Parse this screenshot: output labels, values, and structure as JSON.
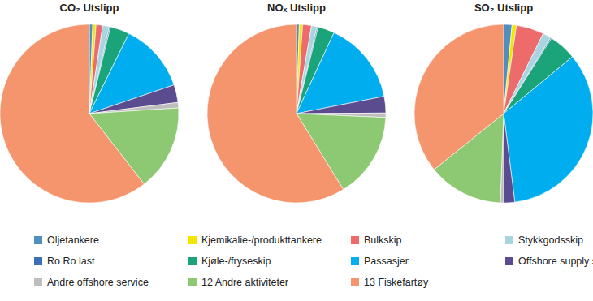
{
  "chart_data": [
    {
      "type": "pie",
      "title": "CO₂ Utslipp",
      "categories": [
        "Oljetankere",
        "Kjemikalie-/produkttankere",
        "Bulkskip",
        "Stykkgodsskip",
        "Ro Ro last",
        "Kjøle-/fryseskip",
        "Passasjer",
        "Offshore supply skip",
        "Andre offshore service",
        "12 Andre aktiviteter",
        "13 Fiskefartøy"
      ],
      "values": [
        0.6,
        0.6,
        1.2,
        1.2,
        0.2,
        3.5,
        12.5,
        3.2,
        1.0,
        15.5,
        60.5
      ],
      "colors": [
        "#4f8fc0",
        "#f2e600",
        "#ee6b6b",
        "#a9d4e2",
        "#3b6fb6",
        "#1ba37a",
        "#00aeef",
        "#5b4b8f",
        "#bebebe",
        "#8dc872",
        "#f4956e"
      ],
      "legend": "bottom"
    },
    {
      "type": "pie",
      "title": "NOₓ Utslipp",
      "categories": [
        "Oljetankere",
        "Kjemikalie-/produkttankere",
        "Bulkskip",
        "Stykkgodsskip",
        "Ro Ro last",
        "Kjøle-/fryseskip",
        "Passasjer",
        "Offshore supply skip",
        "Andre offshore service",
        "12 Andre aktiviteter",
        "13 Fiskefartøy"
      ],
      "values": [
        0.5,
        0.6,
        1.6,
        1.0,
        0.2,
        3.0,
        15.0,
        3.0,
        0.8,
        15.5,
        58.8
      ],
      "colors": [
        "#4f8fc0",
        "#f2e600",
        "#ee6b6b",
        "#a9d4e2",
        "#3b6fb6",
        "#1ba37a",
        "#00aeef",
        "#5b4b8f",
        "#bebebe",
        "#8dc872",
        "#f4956e"
      ]
    },
    {
      "type": "pie",
      "title": "SO₂ Utslipp",
      "categories": [
        "Oljetankere",
        "Kjemikalie-/produkttankere",
        "Bulkskip",
        "Stykkgodsskip",
        "Ro Ro last",
        "Kjøle-/fryseskip",
        "Passasjer",
        "Offshore supply skip",
        "Andre offshore service",
        "12 Andre aktiviteter",
        "13 Fiskefartøy"
      ],
      "values": [
        1.5,
        0.8,
        5.0,
        1.5,
        0.2,
        5.0,
        34.0,
        2.0,
        0.6,
        13.6,
        35.8
      ],
      "colors": [
        "#4f8fc0",
        "#f2e600",
        "#ee6b6b",
        "#a9d4e2",
        "#3b6fb6",
        "#1ba37a",
        "#00aeef",
        "#5b4b8f",
        "#bebebe",
        "#8dc872",
        "#f4956e"
      ]
    }
  ]
}
